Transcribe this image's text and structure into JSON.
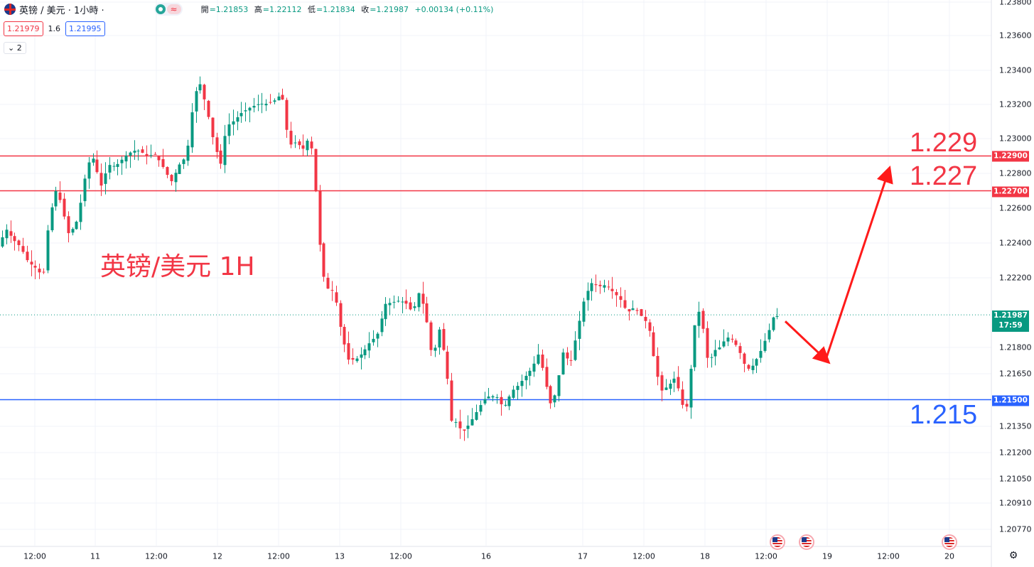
{
  "header": {
    "symbol": "英镑 / 美元 · 1小時 ·",
    "open_label": "開",
    "open": "=1.21853",
    "high_label": "高",
    "high": "=1.22112",
    "low_label": "低",
    "low": "=1.21834",
    "close_label": "收",
    "close": "=1.21987",
    "change": "+0.00134 (+0.11%)",
    "bid": "1.21979",
    "spread": "1.6",
    "ask": "1.21995",
    "indicator_count": "2",
    "wave_icon": "≈"
  },
  "annotations": {
    "title": "英镑/美元 1H",
    "r1_label": "1.229",
    "r2_label": "1.227",
    "s1_label": "1.215"
  },
  "price_tags": {
    "r1": "1.22900",
    "r2": "1.22700",
    "s1": "1.21500",
    "current_price": "1.21987",
    "current_time": "17:59"
  },
  "chart_data": {
    "type": "candlestick",
    "title": "英镑/美元 1H",
    "y_ticks": [
      "1.23800",
      "1.23600",
      "1.23400",
      "1.23200",
      "1.23000",
      "1.22800",
      "1.22600",
      "1.22400",
      "1.22200",
      "1.21800",
      "1.21650",
      "1.21350",
      "1.21200",
      "1.21050",
      "1.20910",
      "1.20770"
    ],
    "x_ticks": [
      "12:00",
      "11",
      "12:00",
      "12",
      "12:00",
      "13",
      "12:00",
      "16",
      "17",
      "12:00",
      "18",
      "12:00",
      "19",
      "12:00",
      "20"
    ],
    "ylim": [
      1.2062,
      1.2386
    ],
    "horizontal_lines": [
      {
        "price": 1.229,
        "color": "#f23645"
      },
      {
        "price": 1.227,
        "color": "#f23645"
      },
      {
        "price": 1.215,
        "color": "#2962ff"
      }
    ],
    "current_price": 1.21987,
    "colors": {
      "up": "#089981",
      "down": "#f23645"
    },
    "projection_arrow": [
      {
        "bar": 1105,
        "price": 1.2195
      },
      {
        "bar": 1162,
        "price": 1.2173
      },
      {
        "bar": 1250,
        "price": 1.2281
      }
    ],
    "path_anchors": [
      [
        3,
        1.2238
      ],
      [
        14,
        1.2248
      ],
      [
        24,
        1.2242
      ],
      [
        34,
        1.2238
      ],
      [
        45,
        1.2229
      ],
      [
        58,
        1.2225
      ],
      [
        66,
        1.222
      ],
      [
        74,
        1.2253
      ],
      [
        84,
        1.227
      ],
      [
        93,
        1.2262
      ],
      [
        100,
        1.2245
      ],
      [
        112,
        1.225
      ],
      [
        120,
        1.2265
      ],
      [
        128,
        1.2285
      ],
      [
        136,
        1.2289
      ],
      [
        148,
        1.2273
      ],
      [
        158,
        1.2285
      ],
      [
        168,
        1.2284
      ],
      [
        182,
        1.229
      ],
      [
        192,
        1.2293
      ],
      [
        202,
        1.2293
      ],
      [
        212,
        1.229
      ],
      [
        224,
        1.2291
      ],
      [
        236,
        1.2283
      ],
      [
        246,
        1.2275
      ],
      [
        258,
        1.2285
      ],
      [
        268,
        1.229
      ],
      [
        278,
        1.2323
      ],
      [
        286,
        1.2333
      ],
      [
        296,
        1.2318
      ],
      [
        306,
        1.2298
      ],
      [
        316,
        1.2285
      ],
      [
        324,
        1.2307
      ],
      [
        334,
        1.231
      ],
      [
        346,
        1.2315
      ],
      [
        358,
        1.2318
      ],
      [
        370,
        1.232
      ],
      [
        382,
        1.232
      ],
      [
        392,
        1.2322
      ],
      [
        402,
        1.2326
      ],
      [
        412,
        1.2296
      ],
      [
        422,
        1.2298
      ],
      [
        432,
        1.2294
      ],
      [
        442,
        1.2302
      ],
      [
        450,
        1.2268
      ],
      [
        458,
        1.2225
      ],
      [
        466,
        1.2214
      ],
      [
        476,
        1.2212
      ],
      [
        486,
        1.2188
      ],
      [
        496,
        1.2173
      ],
      [
        506,
        1.2173
      ],
      [
        516,
        1.2177
      ],
      [
        526,
        1.2183
      ],
      [
        536,
        1.2187
      ],
      [
        548,
        1.2205
      ],
      [
        558,
        1.2206
      ],
      [
        568,
        1.2207
      ],
      [
        578,
        1.2205
      ],
      [
        586,
        1.22
      ],
      [
        596,
        1.2213
      ],
      [
        606,
        1.2195
      ],
      [
        614,
        1.2173
      ],
      [
        624,
        1.2191
      ],
      [
        634,
        1.2168
      ],
      [
        640,
        1.2138
      ],
      [
        648,
        1.2137
      ],
      [
        656,
        1.2131
      ],
      [
        666,
        1.2136
      ],
      [
        676,
        1.2143
      ],
      [
        686,
        1.215
      ],
      [
        694,
        1.2152
      ],
      [
        704,
        1.2152
      ],
      [
        714,
        1.2145
      ],
      [
        726,
        1.2155
      ],
      [
        734,
        1.2158
      ],
      [
        744,
        1.2163
      ],
      [
        754,
        1.2168
      ],
      [
        764,
        1.2177
      ],
      [
        774,
        1.2158
      ],
      [
        782,
        1.2145
      ],
      [
        790,
        1.216
      ],
      [
        798,
        1.2178
      ],
      [
        808,
        1.217
      ],
      [
        818,
        1.219
      ],
      [
        828,
        1.2209
      ],
      [
        838,
        1.2217
      ],
      [
        848,
        1.2215
      ],
      [
        858,
        1.2216
      ],
      [
        868,
        1.2212
      ],
      [
        878,
        1.2208
      ],
      [
        888,
        1.22
      ],
      [
        898,
        1.2203
      ],
      [
        908,
        1.2198
      ],
      [
        918,
        1.2193
      ],
      [
        928,
        1.2168
      ],
      [
        936,
        1.2155
      ],
      [
        946,
        1.2158
      ],
      [
        956,
        1.2163
      ],
      [
        964,
        1.215
      ],
      [
        970,
        1.214
      ],
      [
        978,
        1.217
      ],
      [
        986,
        1.2205
      ],
      [
        994,
        1.2193
      ],
      [
        1002,
        1.217
      ],
      [
        1010,
        1.2178
      ],
      [
        1018,
        1.218
      ],
      [
        1028,
        1.2186
      ],
      [
        1038,
        1.2184
      ],
      [
        1048,
        1.2176
      ],
      [
        1056,
        1.2167
      ],
      [
        1066,
        1.217
      ],
      [
        1076,
        1.2178
      ],
      [
        1086,
        1.2188
      ],
      [
        1094,
        1.2198
      ]
    ]
  }
}
